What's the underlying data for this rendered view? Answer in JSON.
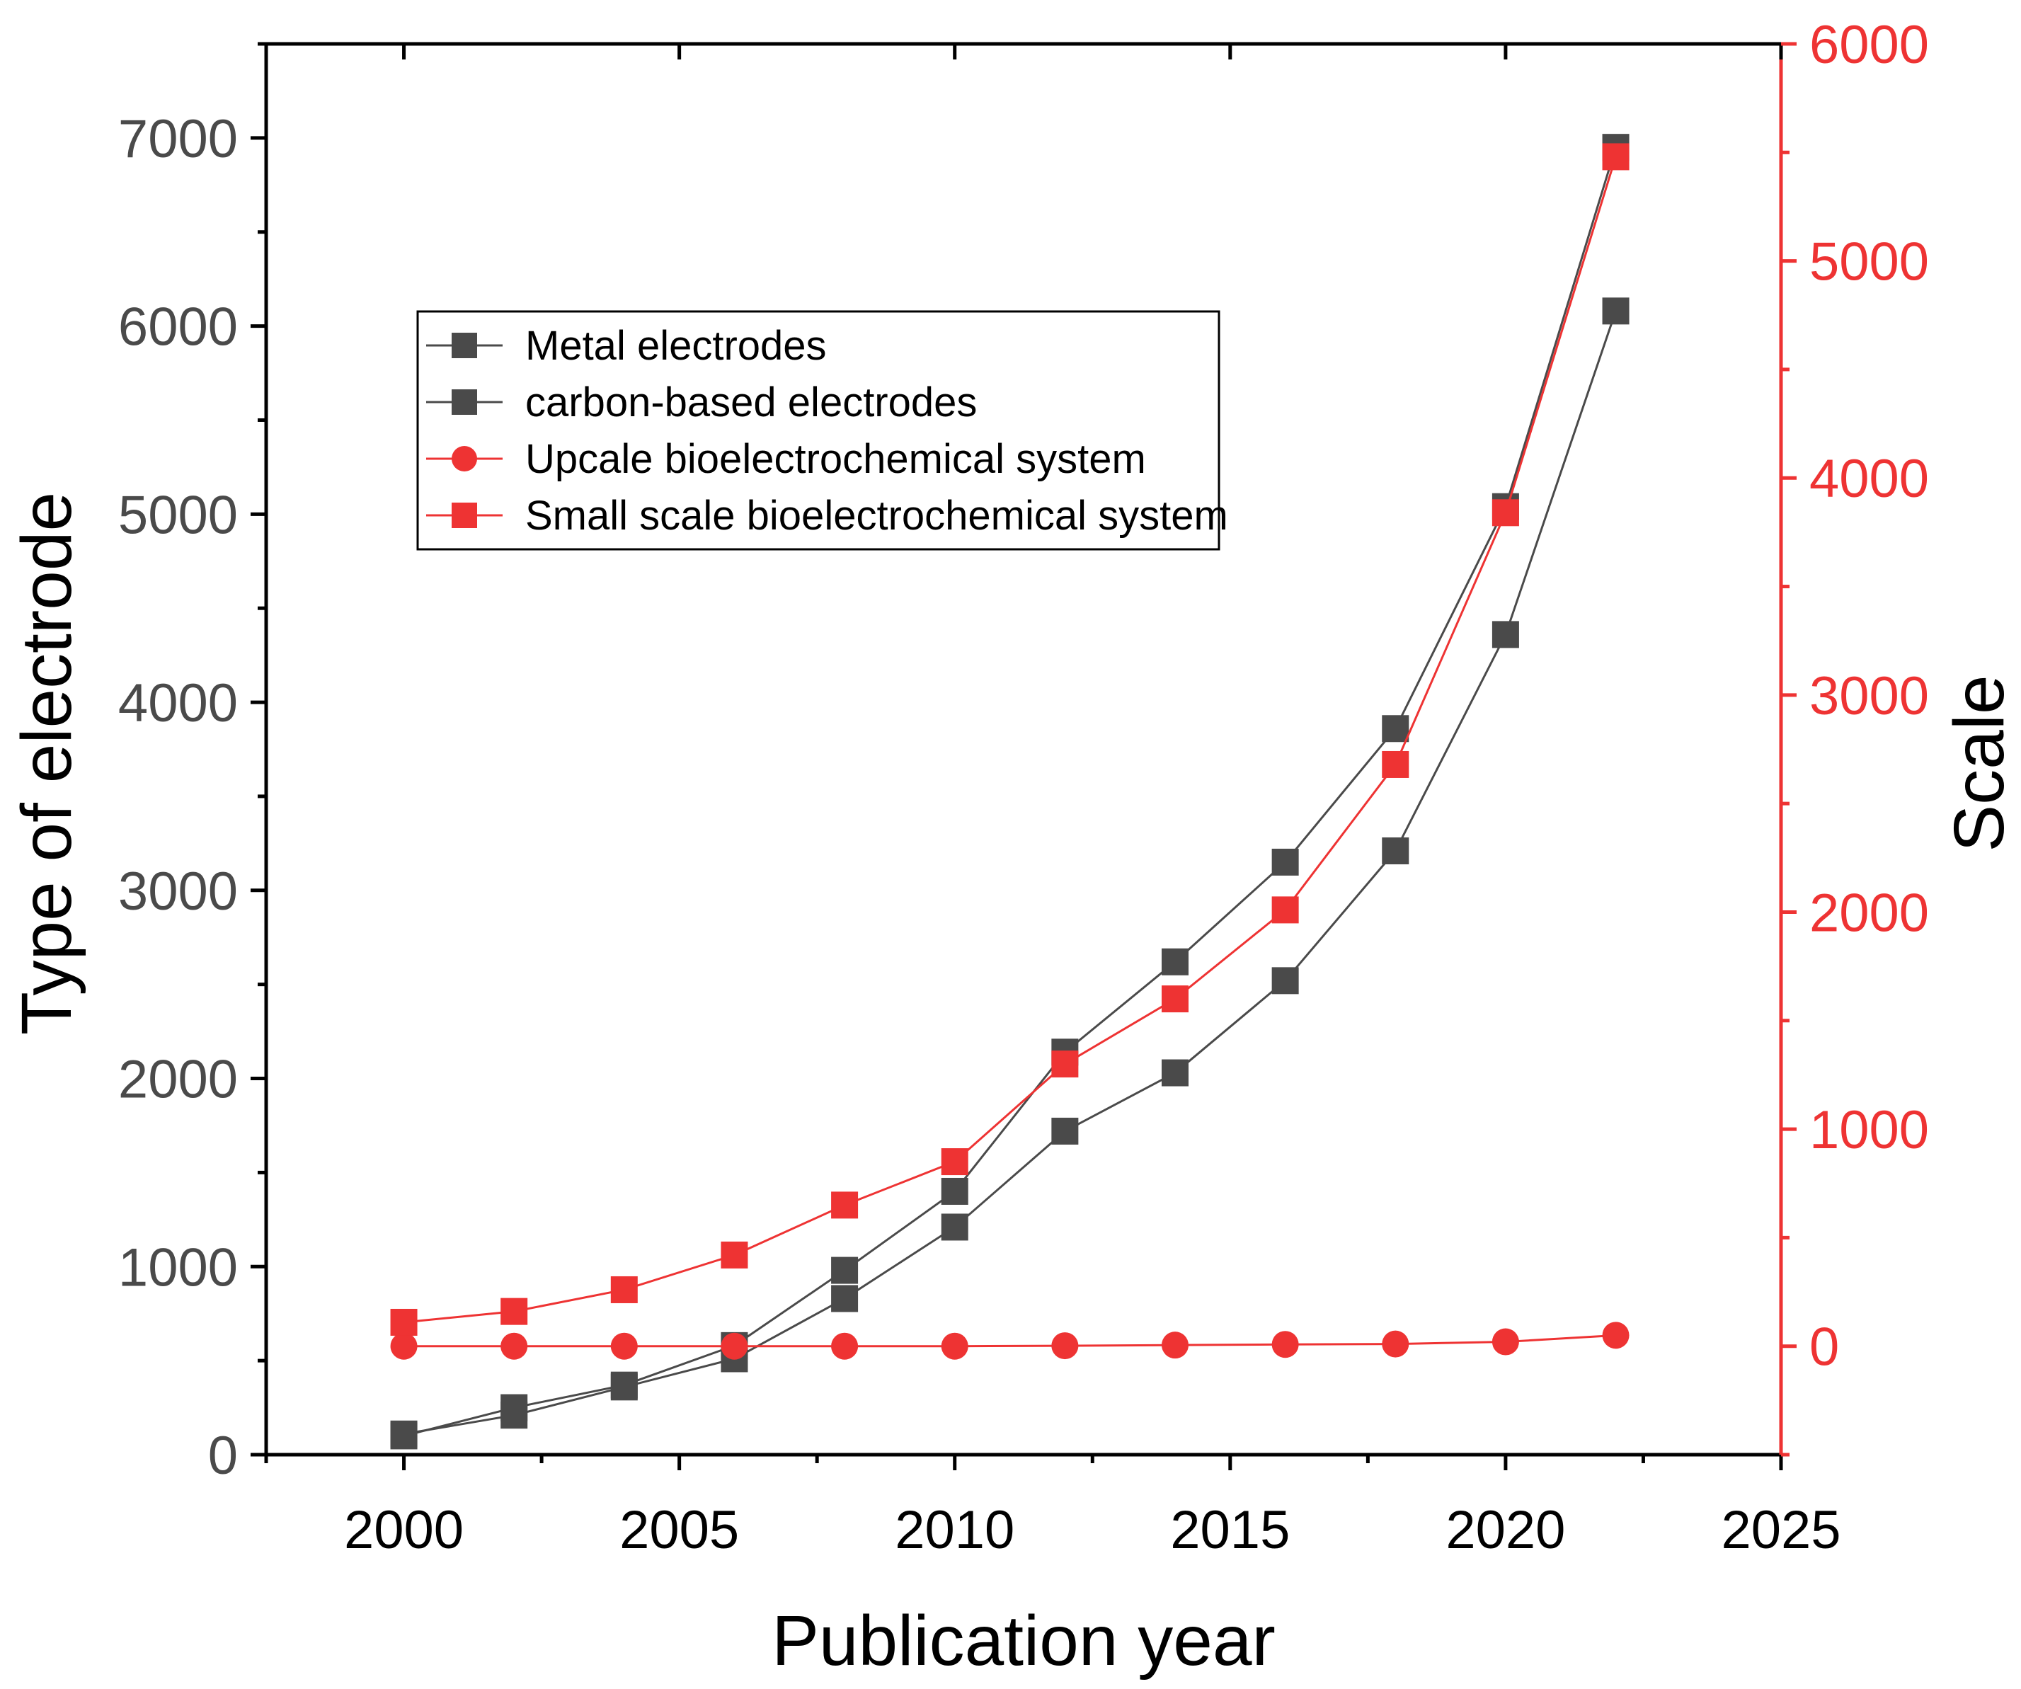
{
  "chart_data": {
    "type": "line",
    "title": "",
    "xlabel": "Publication year",
    "ylabel": "Type of electrode",
    "y2label": "Scale",
    "xlim": [
      1997.5,
      2025
    ],
    "ylim": [
      0,
      7500
    ],
    "y2lim": [
      -500,
      6000
    ],
    "x_ticks": [
      "2000",
      "2005",
      "2010",
      "2015",
      "2020",
      "2025"
    ],
    "y_ticks": [
      "0",
      "1000",
      "2000",
      "3000",
      "4000",
      "5000",
      "6000",
      "7000"
    ],
    "y2_ticks": [
      "0",
      "1000",
      "2000",
      "3000",
      "4000",
      "5000",
      "6000"
    ],
    "x": [
      2000,
      2002,
      2004,
      2006,
      2008,
      2010,
      2012,
      2014,
      2016,
      2018,
      2020,
      2022
    ],
    "series": [
      {
        "name": "Metal electrodes",
        "axis": "left",
        "marker": "square",
        "color": "#4a4a4a",
        "values": [
          100,
          250,
          370,
          580,
          980,
          1400,
          2140,
          2620,
          3150,
          3860,
          5040,
          6950
        ]
      },
      {
        "name": "carbon-based electrodes",
        "axis": "left",
        "marker": "square",
        "color": "#4a4a4a",
        "values": [
          110,
          210,
          360,
          510,
          830,
          1210,
          1720,
          2030,
          2520,
          3210,
          4360,
          6080
        ]
      },
      {
        "name": "Upcale bioelectrochemical system",
        "axis": "right",
        "marker": "circle",
        "color": "#ee3333",
        "values": [
          0,
          0,
          0,
          0,
          0,
          0,
          2,
          5,
          8,
          10,
          20,
          50
        ]
      },
      {
        "name": "Small scale bioelectrochemical system",
        "axis": "right",
        "marker": "square",
        "color": "#ee3333",
        "values": [
          110,
          160,
          260,
          420,
          650,
          850,
          1300,
          1600,
          2010,
          2680,
          3840,
          5480
        ]
      }
    ],
    "legend_position": "upper-left",
    "colors": {
      "left_axis": "#000000",
      "left_tick_labels": "#4a4a4a",
      "right_axis": "#ee3333",
      "dark_series": "#4a4a4a",
      "red_series": "#ee3333"
    }
  }
}
